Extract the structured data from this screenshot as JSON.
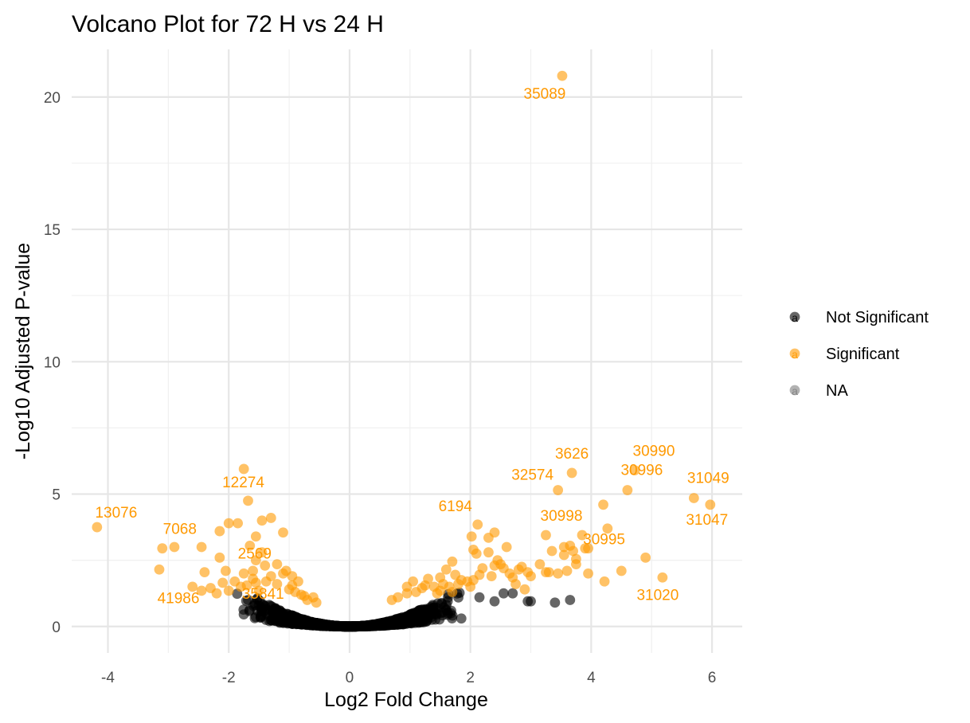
{
  "chart_data": {
    "type": "scatter",
    "title": "Volcano Plot for 72 H vs 24 H",
    "xlabel": "Log2 Fold Change",
    "ylabel": "-Log10 Adjusted P-value",
    "xlim": [
      -4.6,
      6.5
    ],
    "ylim": [
      -1.0,
      21.8
    ],
    "x_ticks": [
      -4,
      -2,
      0,
      2,
      4,
      6
    ],
    "y_ticks": [
      0,
      5,
      10,
      15,
      20
    ],
    "grid": true,
    "legend": {
      "position": "right",
      "items": [
        {
          "label": "Not Significant",
          "color": "#000000",
          "key_letter": "a"
        },
        {
          "label": "Significant",
          "color": "#FF9900",
          "key_letter": "a"
        },
        {
          "label": "NA",
          "color": "#7f7f7f",
          "key_letter": "a"
        }
      ]
    },
    "colors": {
      "not_significant": "#000000",
      "significant": "#FF9900"
    },
    "series": [
      {
        "name": "Significant",
        "points": [
          {
            "x": 3.52,
            "y": 20.8,
            "label": "35089"
          },
          {
            "x": -4.18,
            "y": 3.75,
            "label": "13076"
          },
          {
            "x": -3.1,
            "y": 2.95,
            "label": "7068"
          },
          {
            "x": -1.75,
            "y": 5.95
          },
          {
            "x": -1.68,
            "y": 4.75,
            "label": "12274"
          },
          {
            "x": -1.65,
            "y": 3.05,
            "label": "2569"
          },
          {
            "x": -3.15,
            "y": 2.15,
            "label": "41986"
          },
          {
            "x": -1.38,
            "y": 1.7,
            "label": "35841"
          },
          {
            "x": 3.68,
            "y": 5.8,
            "label": "3626"
          },
          {
            "x": 4.72,
            "y": 5.9,
            "label": "30990"
          },
          {
            "x": 3.45,
            "y": 5.15,
            "label": "32574"
          },
          {
            "x": 5.7,
            "y": 4.85,
            "label": "31049"
          },
          {
            "x": 5.97,
            "y": 4.6,
            "label": "31047"
          },
          {
            "x": 4.6,
            "y": 5.15,
            "label": "30996"
          },
          {
            "x": 3.85,
            "y": 3.45,
            "label": "30998"
          },
          {
            "x": 3.95,
            "y": 2.95,
            "label": "30995"
          },
          {
            "x": 5.18,
            "y": 1.85,
            "label": "31020"
          },
          {
            "x": 2.12,
            "y": 3.85,
            "label": "6194"
          }
        ]
      }
    ]
  }
}
